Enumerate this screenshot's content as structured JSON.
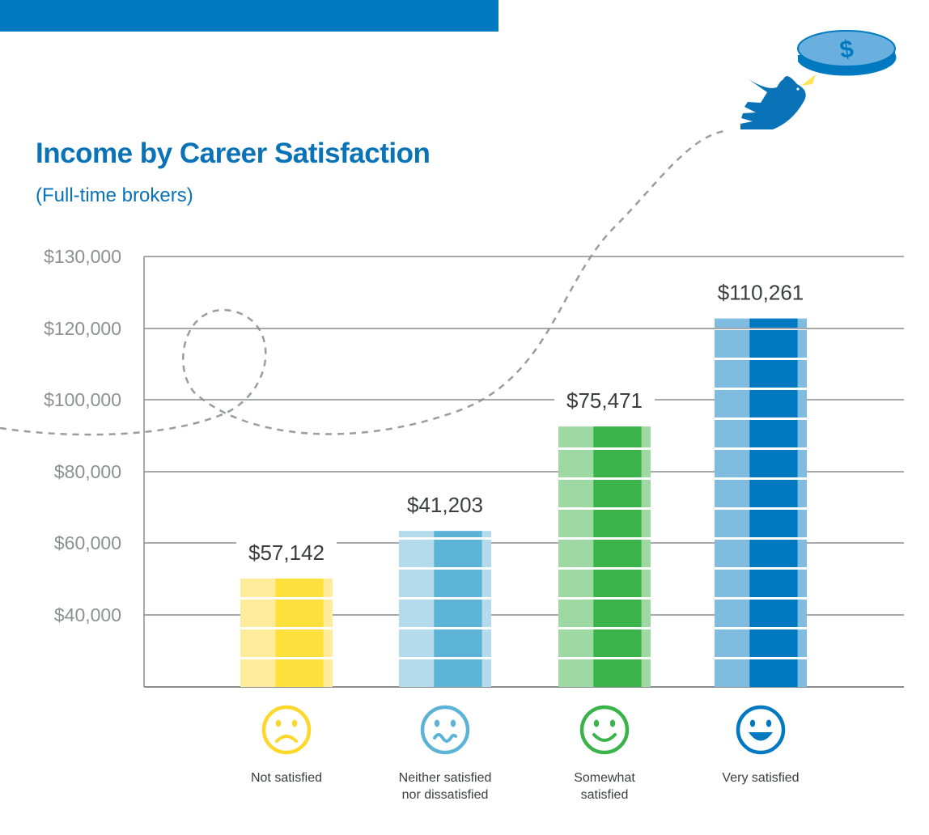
{
  "header": {
    "title": "Income by Career Satisfaction",
    "subtitle": "(Full-time brokers)"
  },
  "decoration": {
    "icons": [
      "bird-icon",
      "coin-icon",
      "dollar-sign-icon"
    ],
    "coin_symbol": "$"
  },
  "colors": {
    "brand_blue": "#0079c1",
    "title_blue": "#0a72b7",
    "grid": "#8a8c90",
    "text": "#3b3d40",
    "tick_text": "#8d8f93"
  },
  "chart_data": {
    "type": "bar",
    "title": "Income by Career Satisfaction",
    "subtitle": "(Full-time brokers)",
    "xlabel": "",
    "ylabel": "",
    "yticks": [
      {
        "value": 130000,
        "label": "$130,000"
      },
      {
        "value": 120000,
        "label": "$120,000"
      },
      {
        "value": 100000,
        "label": "$100,000"
      },
      {
        "value": 80000,
        "label": "$80,000"
      },
      {
        "value": 60000,
        "label": "$60,000"
      },
      {
        "value": 40000,
        "label": "$40,000"
      }
    ],
    "grid": true,
    "categories": [
      [
        "Not satisfied"
      ],
      [
        "Neither satisfied",
        "nor dissatisfied"
      ],
      [
        "Somewhat",
        "satisfied"
      ],
      [
        "Very satisfied"
      ]
    ],
    "values": [
      57142,
      41203,
      75471,
      110261
    ],
    "value_labels": [
      "$57,142",
      "$41,203",
      "$75,471",
      "$110,261"
    ],
    "bar_level": [
      50750,
      64000,
      93000,
      123000
    ],
    "icons": [
      "frown-face-icon",
      "wavy-mouth-face-icon",
      "smile-face-icon",
      "grin-face-icon"
    ],
    "colors": [
      {
        "main": "#fde03b",
        "light": "#feec9a",
        "face": "#fdd72a"
      },
      {
        "main": "#5db3d6",
        "light": "#b4dbeb",
        "face": "#5db3d6"
      },
      {
        "main": "#39b34a",
        "light": "#9ed9a3",
        "face": "#39b34a"
      },
      {
        "main": "#0079c1",
        "light": "#80bce0",
        "face": "#0079c1"
      }
    ]
  }
}
